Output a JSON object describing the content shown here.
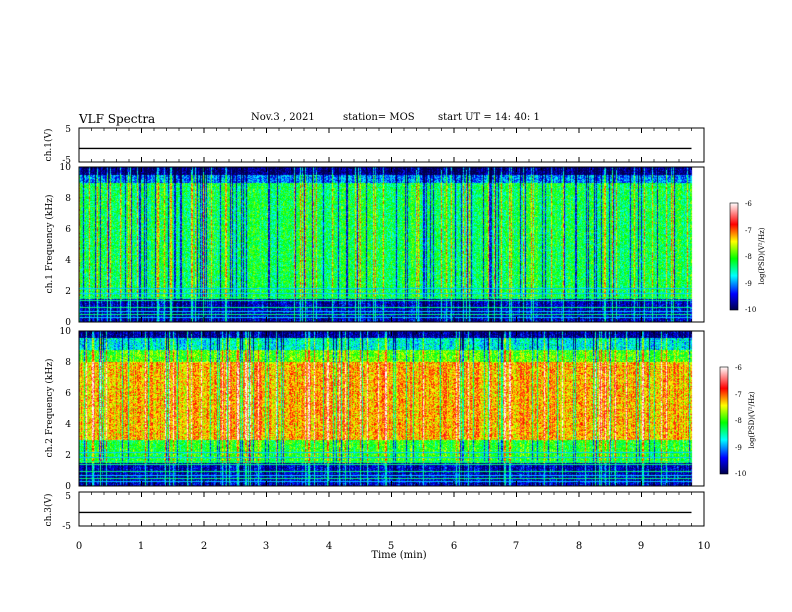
{
  "header": {
    "title": "VLF Spectra",
    "date": "Nov.3 , 2021",
    "station": "station= MOS",
    "start_ut": "start UT = 14: 40: 1"
  },
  "chart_data": [
    {
      "type": "line",
      "ylabel": "ch.1(V)",
      "ylim": [
        -5,
        5
      ],
      "yticks": [
        "5",
        "-5"
      ],
      "xlim": [
        0,
        10
      ],
      "series": [
        {
          "values": [
            [
              0,
              -1
            ],
            [
              9.8,
              -1
            ]
          ]
        }
      ],
      "grid": false
    },
    {
      "type": "heatmap",
      "ylabel": "ch.1 Frequency (kHz)",
      "ylim": [
        0,
        10
      ],
      "yticks": [
        "0",
        "2",
        "4",
        "6",
        "8",
        "10"
      ],
      "xlim": [
        0,
        10
      ],
      "colorbar": {
        "label": "log(PSD)(V²/Hz)",
        "range": [
          -10,
          -6
        ],
        "ticks": [
          "-6",
          "-7",
          "-8",
          "-9",
          "-10"
        ]
      }
    },
    {
      "type": "heatmap",
      "ylabel": "ch.2 Frequency (kHz)",
      "ylim": [
        0,
        10
      ],
      "yticks": [
        "0",
        "2",
        "4",
        "6",
        "8",
        "10"
      ],
      "xlim": [
        0,
        10
      ],
      "colorbar": {
        "label": "log(PSD)(V²/Hz)",
        "range": [
          -10,
          -6
        ],
        "ticks": [
          "-6",
          "-7",
          "-8",
          "-9",
          "-10"
        ]
      }
    },
    {
      "type": "line",
      "ylabel": "ch.3(V)",
      "ylim": [
        -5,
        5
      ],
      "yticks": [
        "5",
        "-5"
      ],
      "xlim": [
        0,
        10
      ],
      "series": [
        {
          "values": [
            [
              0,
              -1
            ],
            [
              9.8,
              -1
            ]
          ]
        }
      ],
      "grid": false,
      "xlabel": "Time (min)",
      "xticks": [
        "0",
        "1",
        "2",
        "3",
        "4",
        "5",
        "6",
        "7",
        "8",
        "9",
        "10"
      ]
    }
  ],
  "colors": {
    "colormap": [
      "#00004a",
      "#0000ff",
      "#00ffff",
      "#00ff00",
      "#ffff00",
      "#ff0000",
      "#ffffff"
    ],
    "axis": "#000000"
  }
}
